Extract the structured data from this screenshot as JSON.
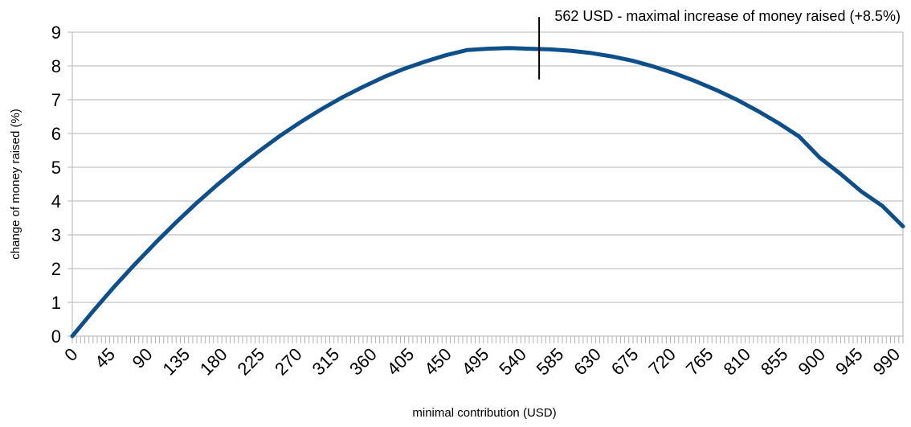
{
  "chart_data": {
    "type": "line",
    "title": "",
    "xlabel": "minimal contribution (USD)",
    "ylabel": "change of money raised (%)",
    "xlim": [
      0,
      1000
    ],
    "ylim": [
      0,
      9
    ],
    "x_ticks": [
      0,
      45,
      90,
      135,
      180,
      225,
      270,
      315,
      360,
      405,
      450,
      495,
      540,
      585,
      630,
      675,
      720,
      765,
      810,
      855,
      900,
      945,
      990
    ],
    "y_ticks": [
      0,
      1,
      2,
      3,
      4,
      5,
      6,
      7,
      8,
      9
    ],
    "grid": "horizontal",
    "legend": "none",
    "series": [
      {
        "color": "#0d4f8b",
        "x": [
          0,
          25,
          50,
          75,
          100,
          125,
          150,
          175,
          200,
          225,
          250,
          275,
          300,
          325,
          350,
          375,
          400,
          425,
          450,
          475,
          500,
          525,
          550,
          562,
          575,
          600,
          625,
          650,
          675,
          700,
          725,
          750,
          775,
          800,
          825,
          850,
          875,
          900,
          925,
          950,
          975,
          1000
        ],
        "y": [
          0.0,
          0.74,
          1.45,
          2.12,
          2.76,
          3.37,
          3.95,
          4.49,
          5.0,
          5.48,
          5.93,
          6.34,
          6.72,
          7.07,
          7.38,
          7.67,
          7.92,
          8.13,
          8.32,
          8.47,
          8.51,
          8.53,
          8.51,
          8.5,
          8.49,
          8.45,
          8.38,
          8.28,
          8.15,
          7.98,
          7.78,
          7.55,
          7.29,
          7.0,
          6.67,
          6.31,
          5.91,
          5.28,
          4.8,
          4.28,
          3.86,
          3.25
        ]
      }
    ],
    "annotation": {
      "x": 562,
      "y_from": 7.6,
      "y_to": 9.45,
      "text": "562 USD - maximal increase of money raised (+8.5%)"
    }
  }
}
